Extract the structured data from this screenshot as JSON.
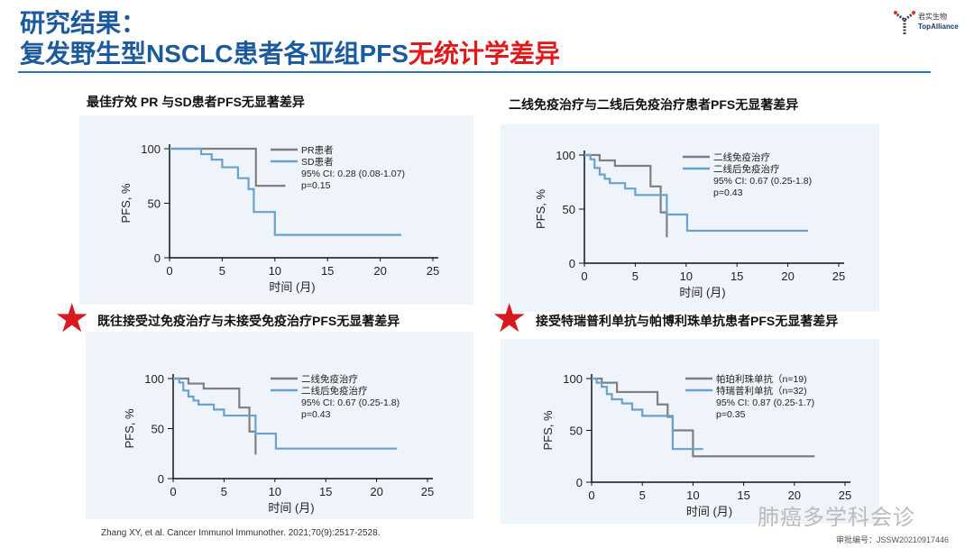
{
  "header": {
    "title_line1": "研究结果：",
    "title_line2_a": "复发野生型NSCLC患者各亚组PFS",
    "title_line2_b": "无统计学差异",
    "logo_cn": "君实生物",
    "logo_en": "TopAlliance"
  },
  "colors": {
    "gray": "#7f7f7f",
    "blue": "#6aa2cc",
    "red": "#e0191b",
    "title_blue": "#1c5a9e"
  },
  "panels": [
    {
      "title": "最佳疗效 PR 与SD患者PFS无显著差异",
      "starred": false
    },
    {
      "title": "二线免疫治疗与二线后免疫治疗患者PFS无显著差异",
      "starred": false
    },
    {
      "title": "既往接受过免疫治疗与未接受免疫治疗PFS无显著差异",
      "starred": true
    },
    {
      "title": "接受特瑞普利单抗与帕博利珠单抗患者PFS无显著差异",
      "starred": true
    }
  ],
  "chart_data": [
    {
      "type": "line",
      "xlabel": "时间 (月)",
      "ylabel": "PFS, %",
      "xlim": [
        0,
        25
      ],
      "ylim": [
        0,
        100
      ],
      "xticks": [
        0,
        5,
        10,
        15,
        20,
        25
      ],
      "yticks": [
        0,
        50,
        100
      ],
      "legend_position": "top-right",
      "ci": "95% CI: 0.28 (0.08-1.07)",
      "p": "p=0.15",
      "series": [
        {
          "name": "PR患者",
          "color": "gray",
          "steps": [
            [
              0,
              100
            ],
            [
              8.2,
              66
            ]
          ],
          "end": 11
        },
        {
          "name": "SD患者",
          "color": "blue",
          "steps": [
            [
              0,
              100
            ],
            [
              3,
              95
            ],
            [
              4,
              90
            ],
            [
              5,
              83
            ],
            [
              6.5,
              73
            ],
            [
              7.5,
              63
            ],
            [
              8,
              42
            ],
            [
              10,
              21
            ]
          ],
          "end": 22
        }
      ]
    },
    {
      "type": "line",
      "xlabel": "时间 (月)",
      "ylabel": "PFS, %",
      "xlim": [
        0,
        25
      ],
      "ylim": [
        0,
        100
      ],
      "xticks": [
        0,
        5,
        10,
        15,
        20,
        25
      ],
      "yticks": [
        0,
        50,
        100
      ],
      "legend_position": "top-right",
      "ci": "95% CI: 0.67 (0.25-1.8)",
      "p": "p=0.43",
      "series": [
        {
          "name": "二线免疫治疗",
          "color": "gray",
          "steps": [
            [
              0,
              100
            ],
            [
              1.5,
              95
            ],
            [
              3,
              90
            ],
            [
              6.5,
              71
            ],
            [
              7.5,
              47
            ],
            [
              8.1,
              24
            ]
          ],
          "end": 8.1
        },
        {
          "name": "二线后免疫治疗",
          "color": "blue",
          "steps": [
            [
              0,
              100
            ],
            [
              0.6,
              96
            ],
            [
              1,
              88
            ],
            [
              1.5,
              82
            ],
            [
              2,
              78
            ],
            [
              2.5,
              74
            ],
            [
              4,
              69
            ],
            [
              5,
              63
            ],
            [
              8.1,
              45
            ],
            [
              10.1,
              30
            ]
          ],
          "end": 22
        }
      ]
    },
    {
      "type": "line",
      "xlabel": "时间 (月)",
      "ylabel": "PFS, %",
      "xlim": [
        0,
        25
      ],
      "ylim": [
        0,
        100
      ],
      "xticks": [
        0,
        5,
        10,
        15,
        20,
        25
      ],
      "yticks": [
        0,
        50,
        100
      ],
      "legend_position": "top-right",
      "ci": "95% CI: 0.67 (0.25-1.8)",
      "p": "p=0.43",
      "series": [
        {
          "name": "二线免疫治疗",
          "color": "gray",
          "steps": [
            [
              0,
              100
            ],
            [
              1.5,
              95
            ],
            [
              3,
              90
            ],
            [
              6.5,
              71
            ],
            [
              7.5,
              47
            ],
            [
              8.1,
              24
            ]
          ],
          "end": 8.1
        },
        {
          "name": "二线后免疫治疗",
          "color": "blue",
          "steps": [
            [
              0,
              100
            ],
            [
              0.6,
              96
            ],
            [
              1,
              88
            ],
            [
              1.5,
              82
            ],
            [
              2,
              78
            ],
            [
              2.5,
              74
            ],
            [
              4,
              69
            ],
            [
              5,
              63
            ],
            [
              8.1,
              45
            ],
            [
              10.1,
              30
            ]
          ],
          "end": 22
        }
      ]
    },
    {
      "type": "line",
      "xlabel": "时间 (月)",
      "ylabel": "PFS, %",
      "xlim": [
        0,
        25
      ],
      "ylim": [
        0,
        100
      ],
      "xticks": [
        0,
        5,
        10,
        15,
        20,
        25
      ],
      "yticks": [
        0,
        50,
        100
      ],
      "legend_position": "top-right",
      "ci": "95% CI: 0.87 (0.25-1.7)",
      "p": "p=0.35",
      "series": [
        {
          "name": "帕珀利珠单抗（n=19)",
          "color": "gray",
          "steps": [
            [
              0,
              100
            ],
            [
              1,
              96
            ],
            [
              2.5,
              87
            ],
            [
              6.5,
              75
            ],
            [
              7.5,
              63
            ],
            [
              8,
              50
            ],
            [
              10,
              25
            ]
          ],
          "end": 22
        },
        {
          "name": "特瑞普利单抗（n=32)",
          "color": "blue",
          "steps": [
            [
              0,
              100
            ],
            [
              0.5,
              96
            ],
            [
              1,
              92
            ],
            [
              1.5,
              85
            ],
            [
              2,
              80
            ],
            [
              3,
              76
            ],
            [
              4,
              70
            ],
            [
              5,
              64
            ],
            [
              8,
              32
            ]
          ],
          "end": 11
        }
      ]
    }
  ],
  "footer": {
    "citation": "Zhang XY,  et al. Cancer Immunol Immunother. 2021;70(9):2517-2528.",
    "approval": "审批编号：JSSW20210917446",
    "watermark": "肺癌多学科会诊"
  }
}
